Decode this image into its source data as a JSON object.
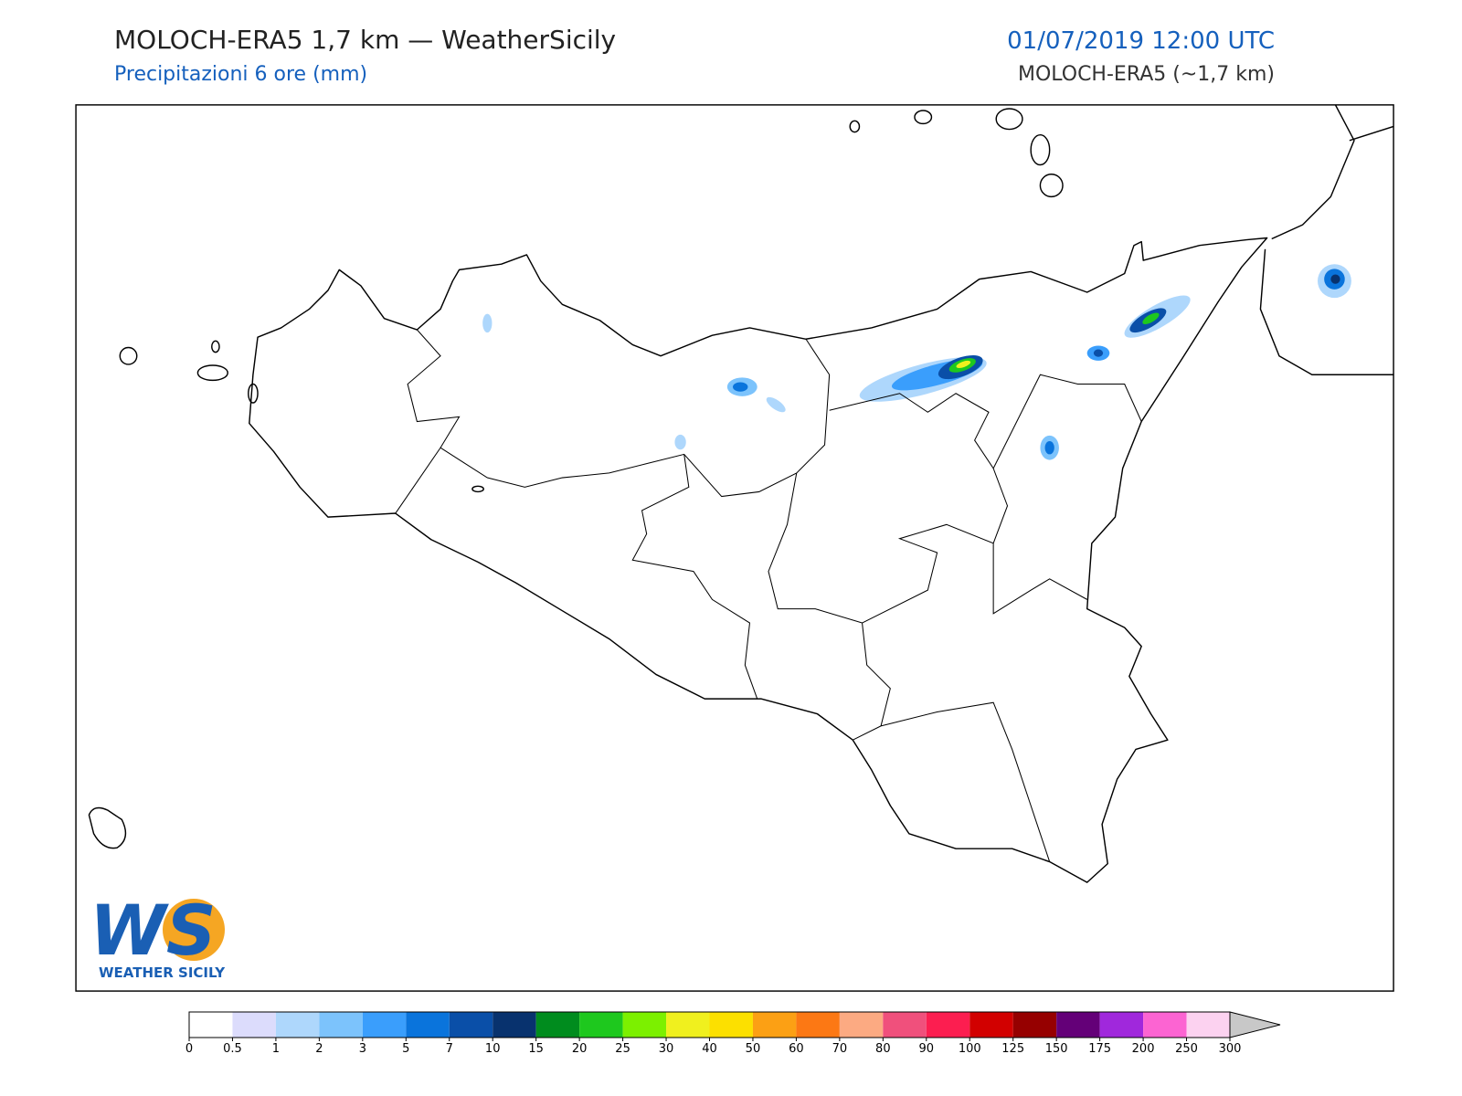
{
  "header": {
    "title": "MOLOCH-ERA5 1,7 km — WeatherSicily",
    "subtitle": "Precipitazioni 6 ore (mm)",
    "datetime": "01/07/2019 12:00 UTC",
    "model": "MOLOCH-ERA5 (~1,7 km)"
  },
  "logo": {
    "letters": "WS",
    "name": "WEATHER SICILY"
  },
  "colorbar": {
    "levels": [
      0,
      0.5,
      1,
      2,
      3,
      5,
      7,
      10,
      15,
      20,
      25,
      30,
      40,
      50,
      60,
      70,
      80,
      90,
      100,
      125,
      150,
      175,
      200,
      250,
      300
    ],
    "colors": [
      "#ffffff",
      "#dcdcfc",
      "#aed7fc",
      "#7cc3fc",
      "#3a9efc",
      "#0a74dc",
      "#0a4fa8",
      "#08326e",
      "#008c1e",
      "#1ec81e",
      "#7cf000",
      "#f0f01e",
      "#fce000",
      "#fca014",
      "#fc7814",
      "#fcaa82",
      "#f0507c",
      "#fc1e50",
      "#d20000",
      "#960000",
      "#640078",
      "#a028dc",
      "#fc64d2",
      "#fcd2f0"
    ],
    "over_color": "#c8c8c8"
  }
}
